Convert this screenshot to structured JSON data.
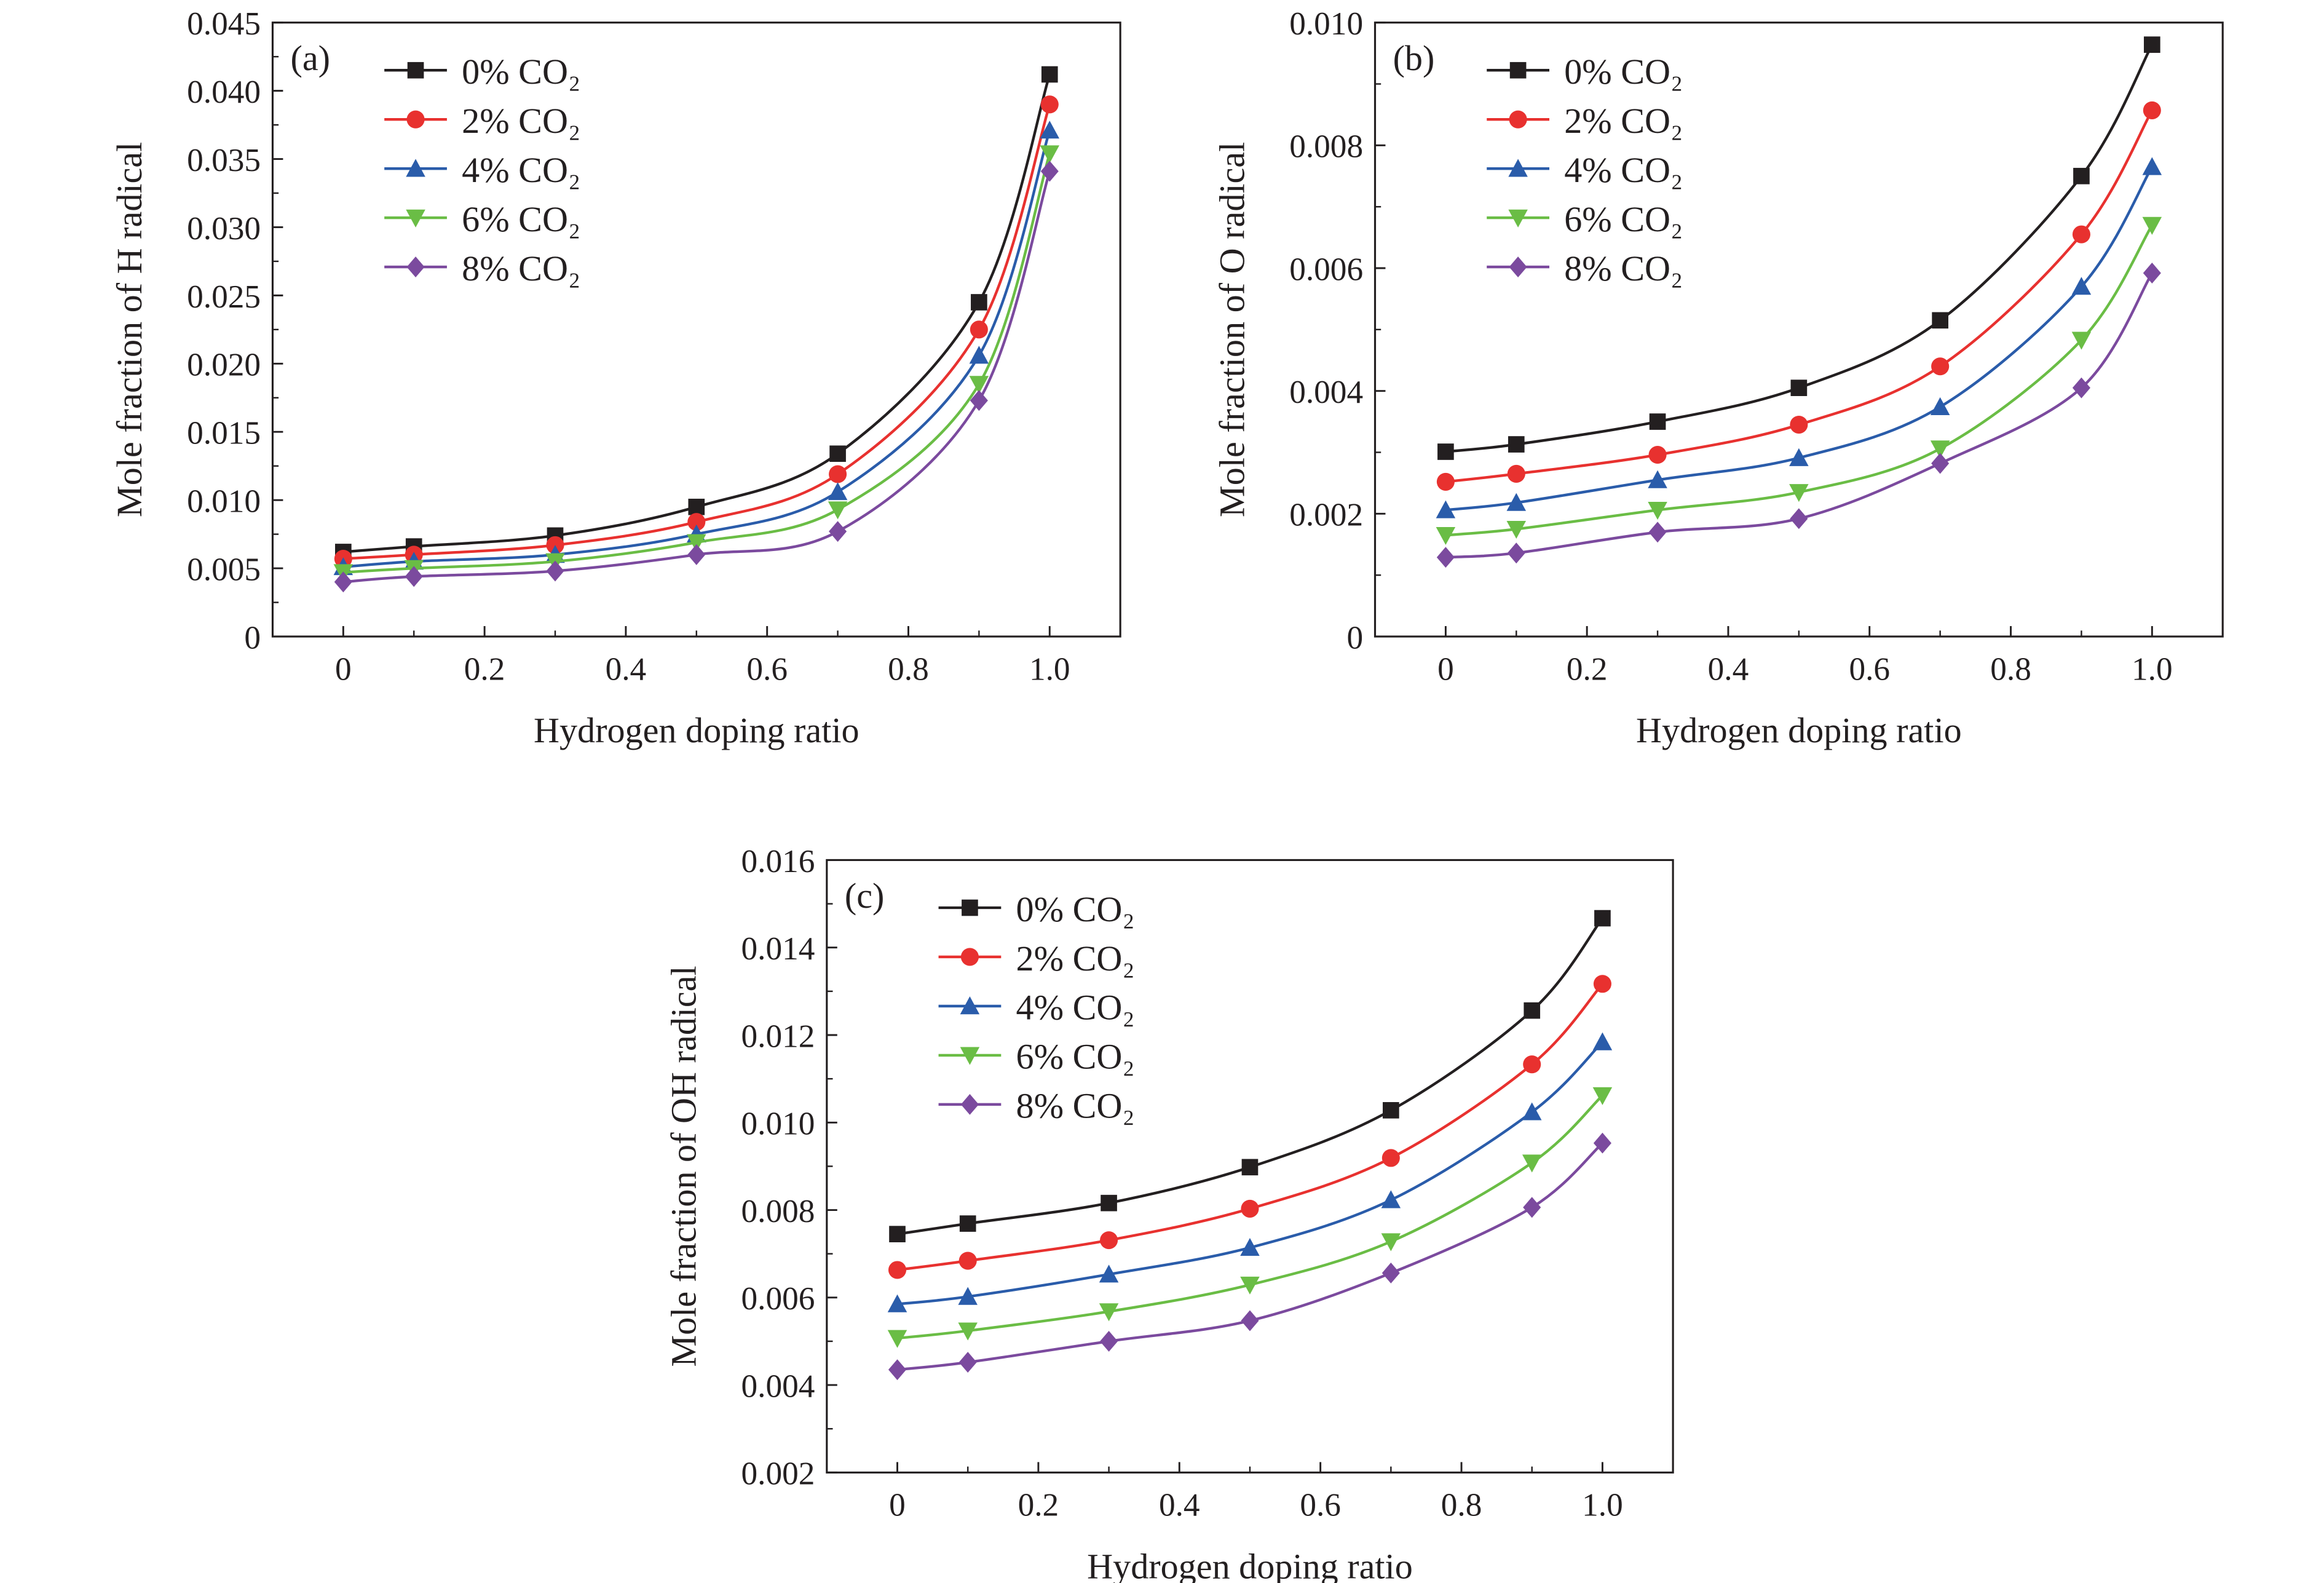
{
  "series_style": [
    {
      "color": "#231f20",
      "marker": "square"
    },
    {
      "color": "#e8312f",
      "marker": "circle"
    },
    {
      "color": "#2a5caa",
      "marker": "triangle-up"
    },
    {
      "color": "#6abd45",
      "marker": "triangle-down"
    },
    {
      "color": "#7b4a9e",
      "marker": "diamond"
    }
  ],
  "chart_data": [
    {
      "type": "line",
      "panel_label": "(a)",
      "xlabel": "Hydrogen doping ratio",
      "ylabel": "Mole fraction of H radical",
      "xlim": [
        -0.1,
        1.1
      ],
      "ylim": [
        0,
        0.045
      ],
      "xticks": [
        "0",
        "0.2",
        "0.4",
        "0.6",
        "0.8",
        "1.0"
      ],
      "yticks": [
        "0",
        "0.005",
        "0.010",
        "0.015",
        "0.020",
        "0.025",
        "0.030",
        "0.035",
        "0.040",
        "0.045"
      ],
      "legend_position": "top-left",
      "x": [
        0,
        0.1,
        0.3,
        0.5,
        0.7,
        0.9,
        1.0
      ],
      "series": [
        {
          "name": "0% CO₂",
          "values": [
            0.0062,
            0.0066,
            0.0074,
            0.0095,
            0.0134,
            0.0245,
            0.0412
          ]
        },
        {
          "name": "2% CO₂",
          "values": [
            0.0057,
            0.006,
            0.0067,
            0.0084,
            0.0119,
            0.0225,
            0.039
          ]
        },
        {
          "name": "4% CO₂",
          "values": [
            0.0051,
            0.0055,
            0.006,
            0.0075,
            0.0106,
            0.0206,
            0.0371
          ]
        },
        {
          "name": "6% CO₂",
          "values": [
            0.0047,
            0.005,
            0.0055,
            0.0069,
            0.0093,
            0.0185,
            0.0354
          ]
        },
        {
          "name": "8% CO₂",
          "values": [
            0.004,
            0.0044,
            0.0048,
            0.006,
            0.0077,
            0.0173,
            0.0341
          ]
        }
      ]
    },
    {
      "type": "line",
      "panel_label": "(b)",
      "xlabel": "Hydrogen doping ratio",
      "ylabel": "Mole fraction of O radical",
      "xlim": [
        -0.1,
        1.1
      ],
      "ylim": [
        0,
        0.01
      ],
      "xticks": [
        "0",
        "0.2",
        "0.4",
        "0.6",
        "0.8",
        "1.0"
      ],
      "yticks": [
        "0",
        "0.002",
        "0.004",
        "0.006",
        "0.008",
        "0.010"
      ],
      "legend_position": "top-left",
      "x": [
        0,
        0.1,
        0.3,
        0.5,
        0.7,
        0.9,
        1.0
      ],
      "series": [
        {
          "name": "0% CO₂",
          "values": [
            0.00301,
            0.00313,
            0.0035,
            0.00405,
            0.00515,
            0.0075,
            0.00964
          ]
        },
        {
          "name": "2% CO₂",
          "values": [
            0.00252,
            0.00265,
            0.00296,
            0.00345,
            0.0044,
            0.00655,
            0.00857
          ]
        },
        {
          "name": "4% CO₂",
          "values": [
            0.00206,
            0.00218,
            0.00255,
            0.00291,
            0.00374,
            0.0057,
            0.00765
          ]
        },
        {
          "name": "6% CO₂",
          "values": [
            0.00165,
            0.00175,
            0.00206,
            0.00235,
            0.00306,
            0.00483,
            0.0067
          ]
        },
        {
          "name": "8% CO₂",
          "values": [
            0.00129,
            0.00136,
            0.0017,
            0.00192,
            0.00282,
            0.00405,
            0.00592
          ]
        }
      ]
    },
    {
      "type": "line",
      "panel_label": "(c)",
      "xlabel": "Hydrogen doping ratio",
      "ylabel": "Mole fraction of OH radical",
      "xlim": [
        -0.1,
        1.1
      ],
      "ylim": [
        0.002,
        0.016
      ],
      "xticks": [
        "0",
        "0.2",
        "0.4",
        "0.6",
        "0.8",
        "1.0"
      ],
      "yticks": [
        "0.002",
        "0.004",
        "0.006",
        "0.008",
        "0.010",
        "0.012",
        "0.014",
        "0.016"
      ],
      "legend_position": "top-left",
      "x": [
        0,
        0.1,
        0.3,
        0.5,
        0.7,
        0.9,
        1.0
      ],
      "series": [
        {
          "name": "0% CO₂",
          "values": [
            0.00745,
            0.00769,
            0.00816,
            0.00898,
            0.01028,
            0.01256,
            0.01467
          ]
        },
        {
          "name": "2% CO₂",
          "values": [
            0.00663,
            0.00684,
            0.00731,
            0.00803,
            0.00919,
            0.01133,
            0.01317
          ]
        },
        {
          "name": "4% CO₂",
          "values": [
            0.00585,
            0.00602,
            0.00653,
            0.00714,
            0.00823,
            0.01024,
            0.01184
          ]
        },
        {
          "name": "6% CO₂",
          "values": [
            0.00507,
            0.00524,
            0.00568,
            0.00629,
            0.00728,
            0.00908,
            0.01062
          ]
        },
        {
          "name": "8% CO₂",
          "values": [
            0.00435,
            0.00452,
            0.005,
            0.00547,
            0.00656,
            0.00806,
            0.00953
          ]
        }
      ]
    }
  ]
}
